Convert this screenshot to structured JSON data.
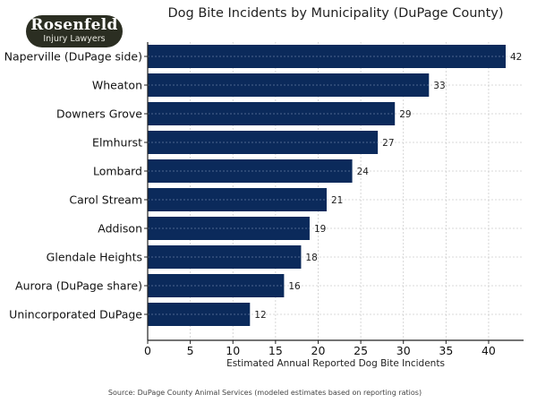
{
  "logo": {
    "line1": "Rosenfeld",
    "line2": "Injury Lawyers"
  },
  "chart_data": {
    "type": "bar",
    "orientation": "horizontal",
    "title": "Dog Bite Incidents by Municipality (DuPage County)",
    "categories": [
      "Naperville (DuPage side)",
      "Wheaton",
      "Downers Grove",
      "Elmhurst",
      "Lombard",
      "Carol Stream",
      "Addison",
      "Glendale Heights",
      "Aurora (DuPage share)",
      "Unincorporated DuPage"
    ],
    "values": [
      42,
      33,
      29,
      27,
      24,
      21,
      19,
      18,
      16,
      12
    ],
    "xlabel": "Estimated Annual Reported Dog Bite Incidents",
    "ylabel": "",
    "xlim": [
      0,
      44.1
    ],
    "xticks": [
      0,
      5,
      10,
      15,
      20,
      25,
      30,
      35,
      40
    ],
    "grid": true,
    "bar_color": "#0b2a5b",
    "source": "Source: DuPage County Animal Services (modeled estimates based on reporting ratios)"
  }
}
